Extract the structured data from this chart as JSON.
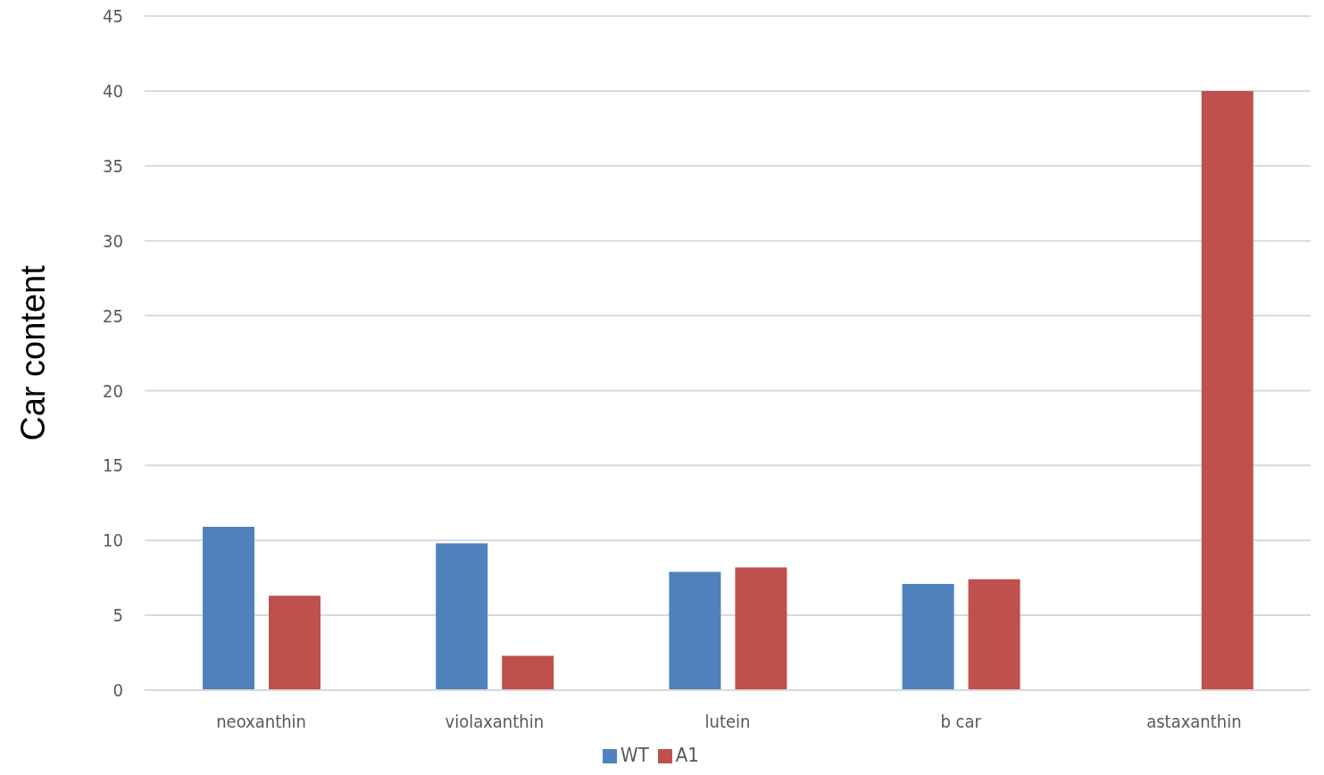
{
  "chart_data": {
    "type": "bar",
    "ylabel": "Car content",
    "categories": [
      "neoxanthin",
      "violaxanthin",
      "lutein",
      "b car",
      "astaxanthin"
    ],
    "series": [
      {
        "name": "WT",
        "color": "#4f81bd",
        "values": [
          10.9,
          9.8,
          7.9,
          7.1,
          0
        ]
      },
      {
        "name": "A1",
        "color": "#c0504d",
        "values": [
          6.3,
          2.3,
          8.2,
          7.4,
          40
        ]
      }
    ],
    "ylim": [
      0,
      45
    ],
    "yticks": [
      0,
      5,
      10,
      15,
      20,
      25,
      30,
      35,
      40,
      45
    ],
    "grid": "y",
    "legend": "bottom"
  }
}
